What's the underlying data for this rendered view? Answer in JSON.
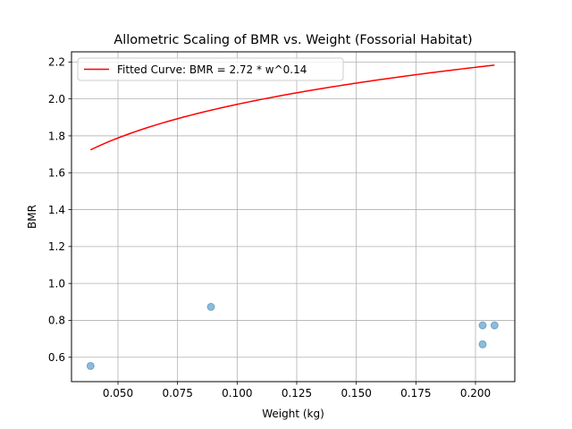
{
  "chart_data": {
    "type": "scatter",
    "title": "Allometric Scaling of BMR vs. Weight (Fossorial Habitat)",
    "xlabel": "Weight (kg)",
    "ylabel": "BMR",
    "xlim": [
      0.0305,
      0.2165
    ],
    "ylim": [
      0.468,
      2.255
    ],
    "xticks": [
      0.05,
      0.075,
      0.1,
      0.125,
      0.15,
      0.175,
      0.2
    ],
    "xtick_labels": [
      "0.050",
      "0.075",
      "0.100",
      "0.125",
      "0.150",
      "0.175",
      "0.200"
    ],
    "yticks": [
      0.6,
      0.8,
      1.0,
      1.2,
      1.4,
      1.6,
      1.8,
      2.0,
      2.2
    ],
    "ytick_labels": [
      "0.6",
      "0.8",
      "1.0",
      "1.2",
      "1.4",
      "1.6",
      "1.8",
      "2.0",
      "2.2"
    ],
    "grid": true,
    "legend_position": "upper-left",
    "series": [
      {
        "kind": "scatter",
        "color": "#1f77b4",
        "alpha": 0.5,
        "x": [
          0.0385,
          0.089,
          0.203,
          0.208,
          0.203
        ],
        "y": [
          0.553,
          0.873,
          0.773,
          0.773,
          0.67
        ]
      },
      {
        "kind": "line",
        "name": "Fitted Curve: BMR = 2.72 * w^0.14",
        "color": "#ff0000",
        "coefficient": 2.72,
        "exponent": 0.14,
        "x_range": [
          0.0385,
          0.208
        ]
      }
    ]
  }
}
